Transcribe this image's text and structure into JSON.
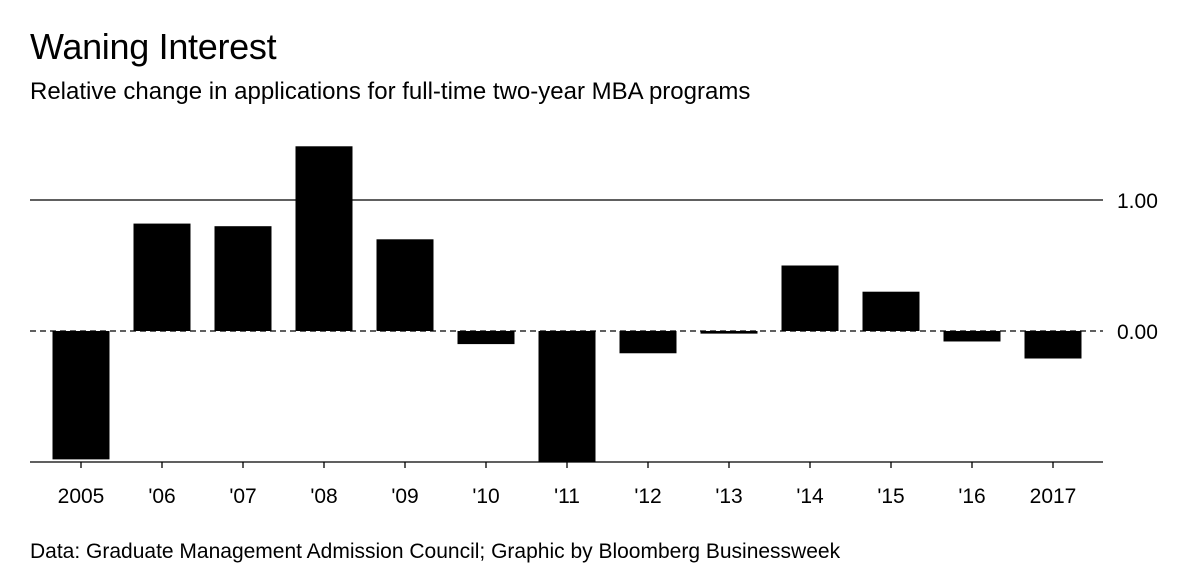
{
  "chart_data": {
    "type": "bar",
    "title": "Waning Interest",
    "subtitle": "Relative change in applications for full-time two-year MBA programs",
    "categories": [
      "2005",
      "'06",
      "'07",
      "'08",
      "'09",
      "'10",
      "'11",
      "'12",
      "'13",
      "'14",
      "'15",
      "'16",
      "2017"
    ],
    "values": [
      -0.98,
      0.82,
      0.8,
      1.41,
      0.7,
      -0.1,
      -1.0,
      -0.17,
      -0.02,
      0.5,
      0.3,
      -0.08,
      -0.21
    ],
    "ylim": [
      -1.0,
      1.5
    ],
    "yticks": [
      1.0,
      0.0
    ],
    "ytick_labels": [
      "1.00",
      "0.00"
    ],
    "xlabel": "",
    "ylabel": "",
    "bar_color": "#000000"
  },
  "source": "Data: Graduate Management Admission Council; Graphic by Bloomberg Businessweek"
}
